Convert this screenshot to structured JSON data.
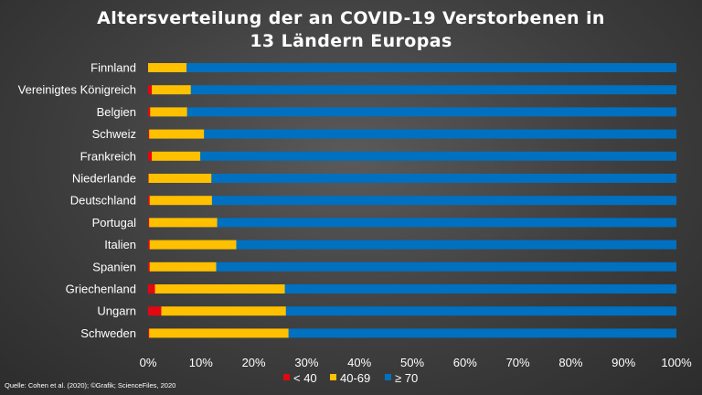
{
  "title_line1": "Altersverteilung der an COVID-19 Verstorbenen in",
  "title_line2": "13 Ländern Europas",
  "source": "Quelle: Cohen et al. (2020); ©Grafik; ScienceFiles, 2020",
  "colors": {
    "lt40": "#e30613",
    "40_69": "#ffc000",
    "ge70": "#0070c0"
  },
  "chart_data": {
    "type": "bar",
    "orientation": "horizontal",
    "stacked": "percent",
    "title": "Altersverteilung der an COVID-19 Verstorbenen in 13 Ländern Europas",
    "categories": [
      "Finnland",
      "Vereinigtes Königreich",
      "Belgien",
      "Schweiz",
      "Frankreich",
      "Niederlande",
      "Deutschland",
      "Portugal",
      "Italien",
      "Spanien",
      "Griechenland",
      "Ungarn",
      "Schweden"
    ],
    "series": [
      {
        "name": "< 40",
        "values": [
          0.0,
          0.7,
          0.4,
          0.2,
          0.7,
          0.1,
          0.3,
          0.2,
          0.3,
          0.3,
          1.3,
          2.5,
          0.2
        ]
      },
      {
        "name": "40-69",
        "values": [
          7.3,
          7.4,
          7.0,
          10.4,
          9.2,
          11.9,
          11.8,
          12.9,
          16.4,
          12.6,
          24.6,
          23.6,
          26.4
        ]
      },
      {
        "name": "≥ 70",
        "values": [
          92.7,
          91.9,
          92.6,
          89.4,
          90.1,
          88.0,
          87.9,
          86.9,
          83.3,
          87.1,
          74.1,
          73.9,
          73.4
        ]
      }
    ],
    "xlim": [
      0,
      100
    ],
    "xticks": [
      "0%",
      "10%",
      "20%",
      "30%",
      "40%",
      "50%",
      "60%",
      "70%",
      "80%",
      "90%",
      "100%"
    ],
    "legend": "bottom",
    "grid": false
  }
}
